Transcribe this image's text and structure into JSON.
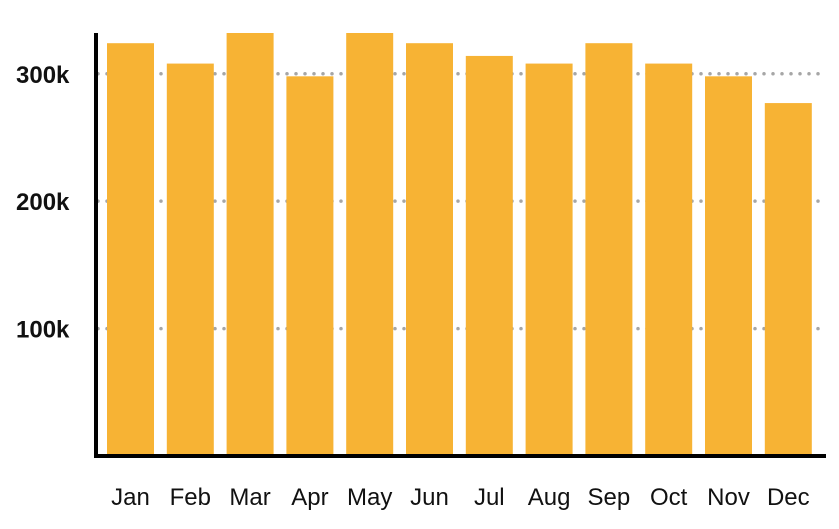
{
  "chart_data": {
    "type": "bar",
    "title": "",
    "xlabel": "",
    "ylabel": "",
    "categories": [
      "Jan",
      "Feb",
      "Mar",
      "Apr",
      "May",
      "Jun",
      "Jul",
      "Aug",
      "Sep",
      "Oct",
      "Nov",
      "Dec"
    ],
    "values": [
      324000,
      308000,
      332000,
      298000,
      332000,
      324000,
      314000,
      308000,
      324000,
      308000,
      298000,
      277000
    ],
    "ylim": [
      0,
      332000
    ],
    "yticks": [
      {
        "value": 100000,
        "label": "100k"
      },
      {
        "value": 200000,
        "label": "200k"
      },
      {
        "value": 300000,
        "label": "300k"
      }
    ],
    "grid": "horizontal-dotted",
    "legend": "none",
    "bar_color": "#F7B334",
    "grid_color": "#A6A6A6",
    "axis_color": "#000000"
  }
}
